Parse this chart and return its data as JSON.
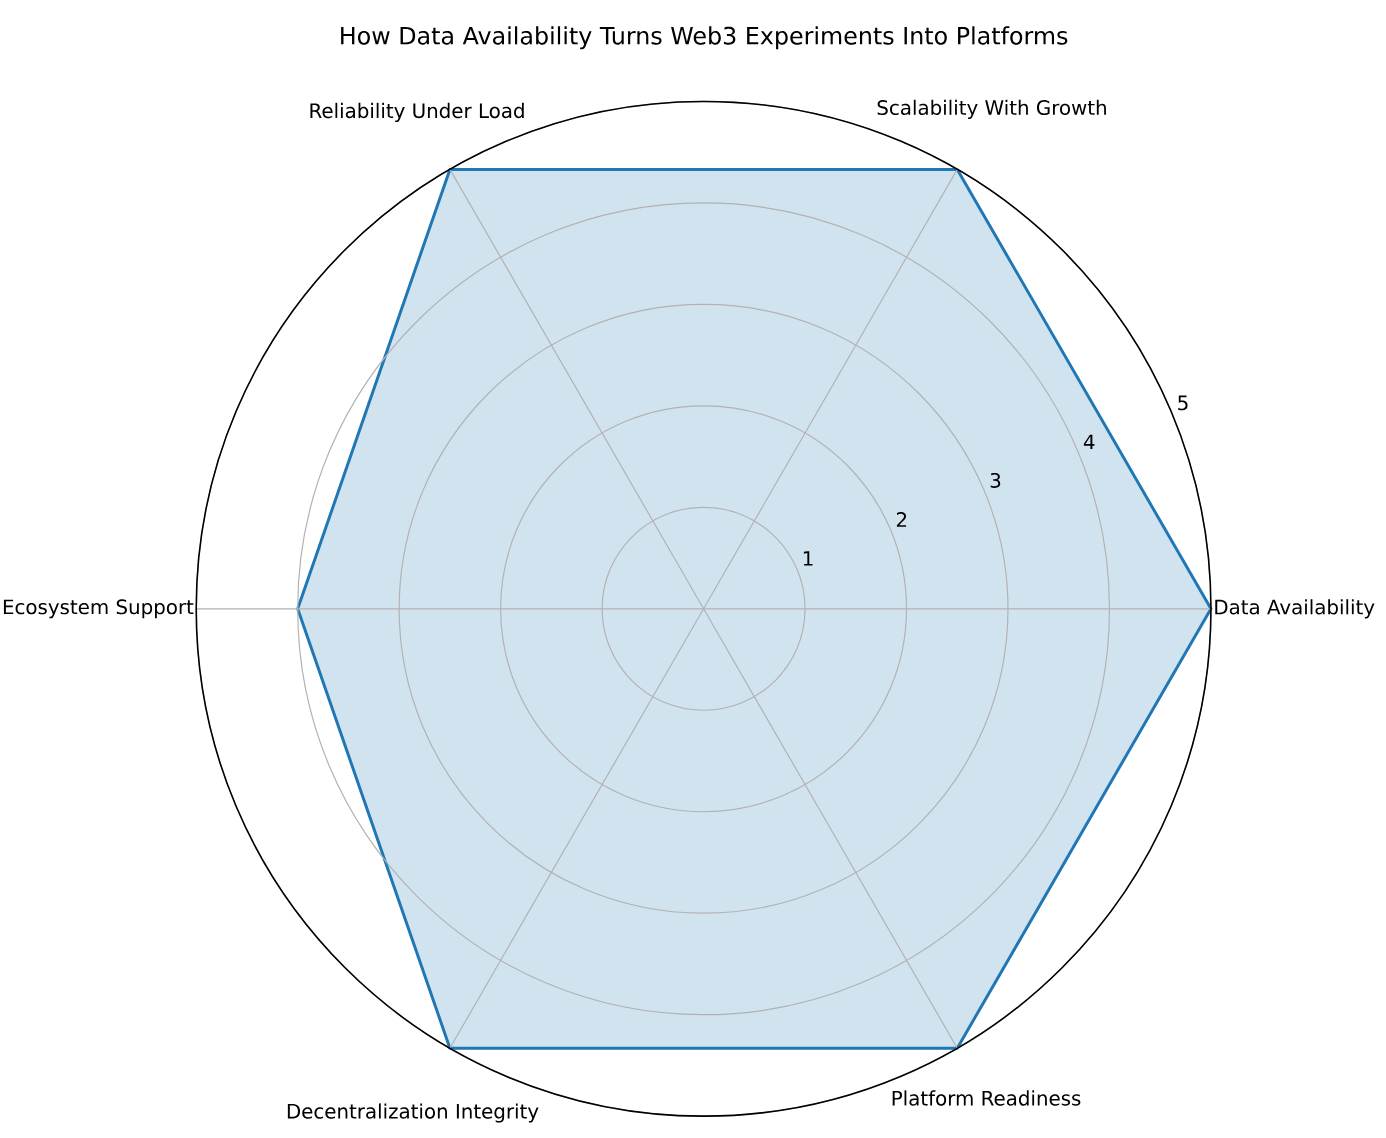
{
  "chart_data": {
    "type": "radar",
    "title": "How Data Availability Turns Web3 Experiments Into Platforms",
    "categories": [
      "Scalability With Growth",
      "Data Availability",
      "Platform Readiness",
      "Decentralization Integrity",
      "Ecosystem Support",
      "Reliability Under Load"
    ],
    "series": [
      {
        "color": "#1f77b4",
        "values": [
          5,
          5,
          5,
          5,
          4,
          5
        ]
      }
    ],
    "ylim": [
      0,
      5
    ],
    "yticks": [
      1,
      2,
      3,
      4,
      5
    ],
    "grid": true
  }
}
